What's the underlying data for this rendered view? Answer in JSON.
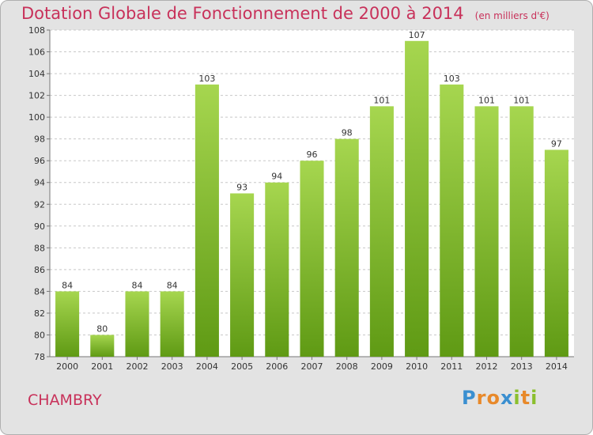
{
  "title": "Dotation Globale de Fonctionnement de 2000 à 2014",
  "subtitle": "(en milliers d'€)",
  "commune": "CHAMBRY",
  "logo": {
    "text": "Proxiti",
    "letters": [
      "P",
      "r",
      "o",
      "x",
      "i",
      "t",
      "i"
    ],
    "colors": [
      "#3a8fd0",
      "#e8892a",
      "#e8892a",
      "#3a8fd0",
      "#8bbf2e",
      "#e8892a",
      "#8bbf2e"
    ]
  },
  "colors": {
    "title": "#c8315a",
    "bar_light": "#a6d64f",
    "bar_dark": "#5f9a14",
    "background": "#e3e3e3",
    "plot_background": "#ffffff"
  },
  "chart_data": {
    "type": "bar",
    "categories": [
      "2000",
      "2001",
      "2002",
      "2003",
      "2004",
      "2005",
      "2006",
      "2007",
      "2008",
      "2009",
      "2010",
      "2011",
      "2012",
      "2013",
      "2014"
    ],
    "values": [
      84,
      80,
      84,
      84,
      103,
      93,
      94,
      96,
      98,
      101,
      107,
      103,
      101,
      101,
      97
    ],
    "ylim": [
      78,
      108
    ],
    "yticks": [
      78,
      80,
      82,
      84,
      86,
      88,
      90,
      92,
      94,
      96,
      98,
      100,
      102,
      104,
      106,
      108
    ],
    "grid": "dashed horizontal",
    "show_value_labels": true
  }
}
